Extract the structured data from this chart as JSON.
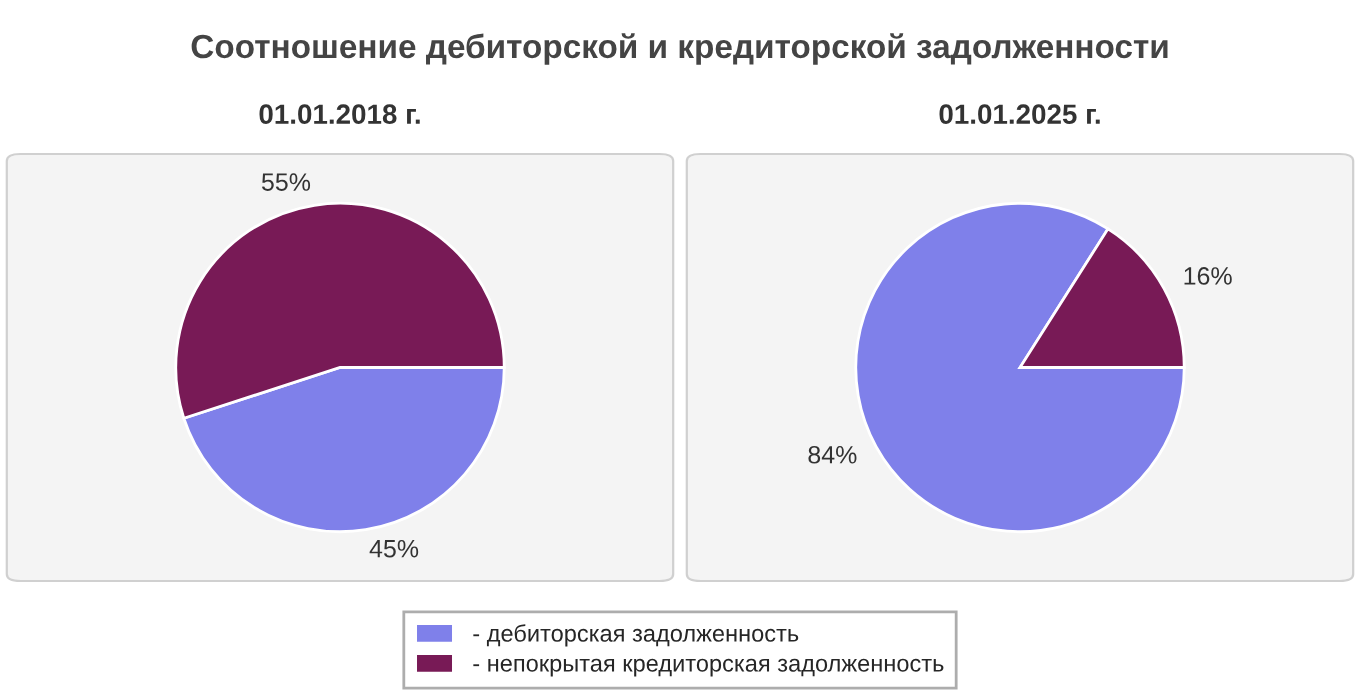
{
  "chart_data": [
    {
      "type": "pie",
      "title": "01.01.2018 г.",
      "annotations": [
        "Соотношение дебиторской и кредиторской задолженности"
      ],
      "categories": [
        "- дебиторская задолженность",
        "- непокрытая кредиторская задолженность"
      ],
      "values": [
        45,
        55
      ],
      "value_labels": [
        "45%",
        "55%"
      ],
      "colors": [
        "#7f80ea",
        "#781a56"
      ],
      "legend": "bottom"
    },
    {
      "type": "pie",
      "title": "01.01.2025 г.",
      "values": [
        84,
        16
      ],
      "value_labels": [
        "84%",
        "16%"
      ],
      "colors": [
        "#7f80ea",
        "#781a56"
      ]
    }
  ]
}
